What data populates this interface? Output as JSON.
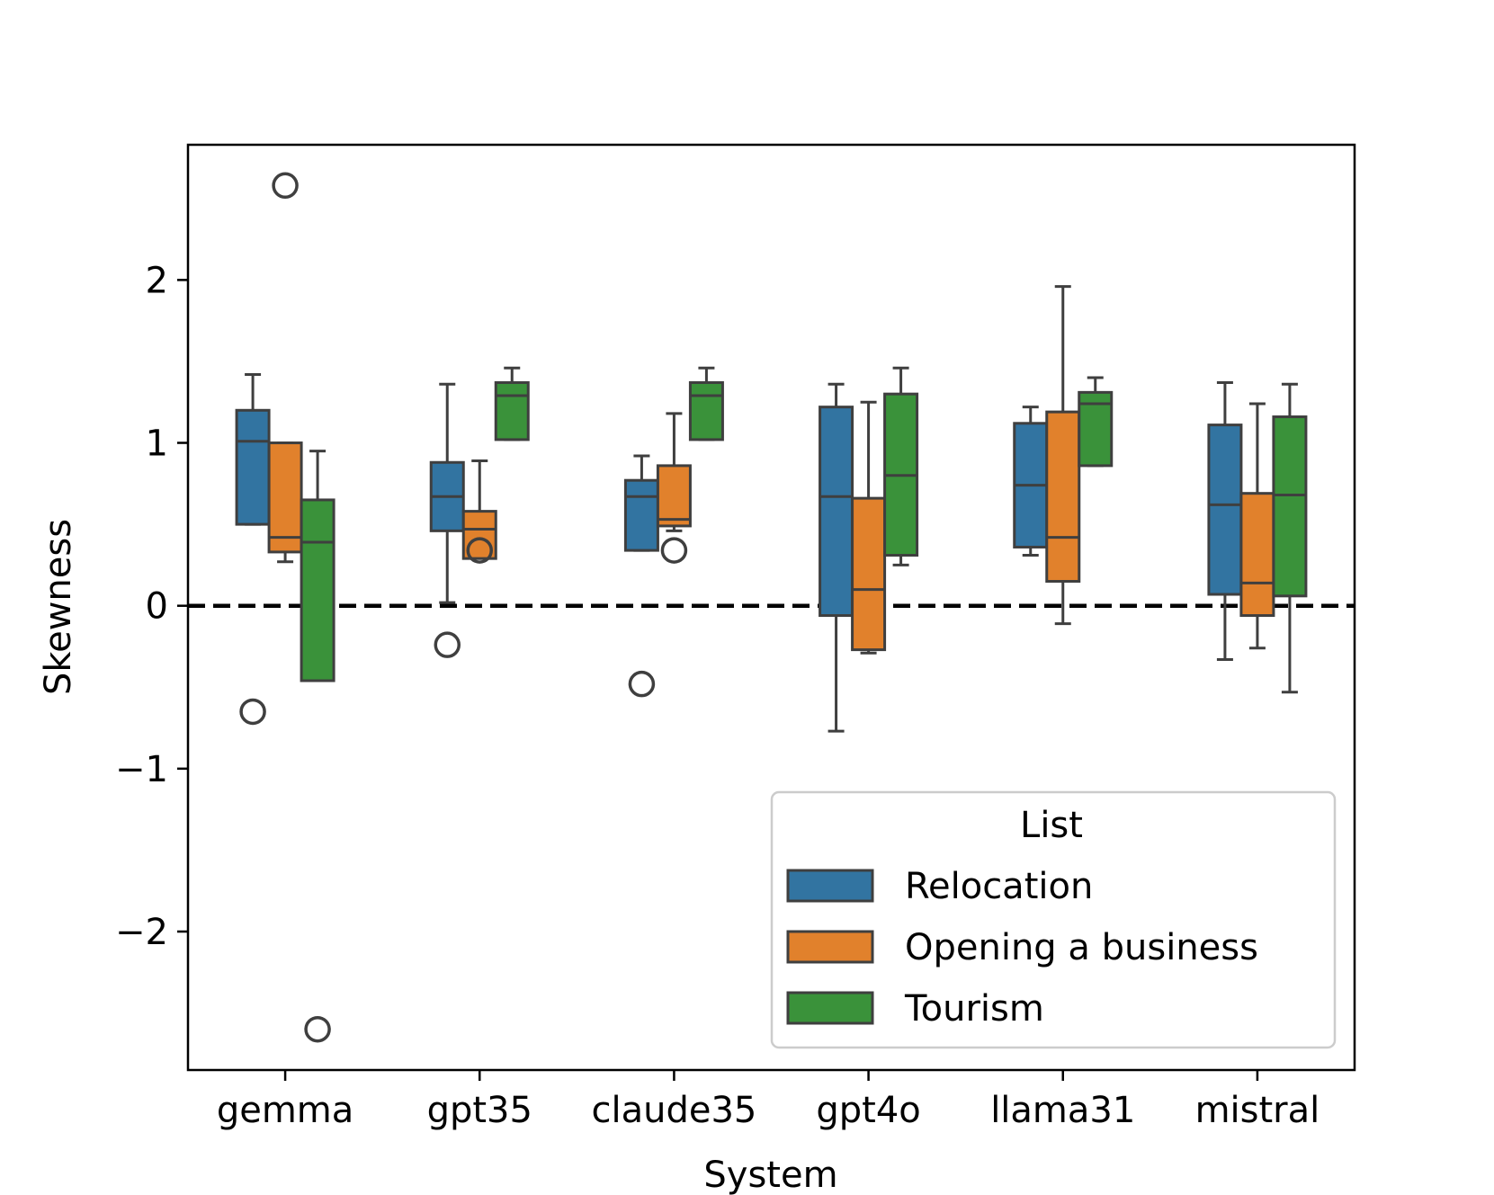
{
  "chart_data": {
    "type": "box",
    "xlabel": "System",
    "ylabel": "Skewness",
    "categories": [
      "gemma",
      "gpt35",
      "claude35",
      "gpt4o",
      "llama31",
      "mistral"
    ],
    "yticks": [
      -2,
      -1,
      0,
      1,
      2
    ],
    "ytick_labels": [
      "−2",
      "−1",
      "0",
      "1",
      "2"
    ],
    "ylim": [
      -2.85,
      2.83
    ],
    "reference_line": {
      "y": 0,
      "style": "dashed",
      "color": "#000000"
    },
    "legend": {
      "title": "List",
      "location": "lower-right"
    },
    "series": [
      {
        "name": "Relocation",
        "color": "#3274a1",
        "boxes": [
          {
            "whisker_low": 0.5,
            "q1": 0.5,
            "median": 1.01,
            "q3": 1.2,
            "whisker_high": 1.42,
            "outliers": [
              -0.65
            ]
          },
          {
            "whisker_low": 0.02,
            "q1": 0.46,
            "median": 0.67,
            "q3": 0.88,
            "whisker_high": 1.36,
            "outliers": [
              -0.24
            ]
          },
          {
            "whisker_low": 0.34,
            "q1": 0.34,
            "median": 0.67,
            "q3": 0.77,
            "whisker_high": 0.92,
            "outliers": [
              -0.48
            ]
          },
          {
            "whisker_low": -0.77,
            "q1": -0.06,
            "median": 0.67,
            "q3": 1.22,
            "whisker_high": 1.36,
            "outliers": []
          },
          {
            "whisker_low": 0.31,
            "q1": 0.36,
            "median": 0.74,
            "q3": 1.12,
            "whisker_high": 1.22,
            "outliers": []
          },
          {
            "whisker_low": -0.33,
            "q1": 0.07,
            "median": 0.62,
            "q3": 1.11,
            "whisker_high": 1.37,
            "outliers": []
          }
        ]
      },
      {
        "name": "Opening a business",
        "color": "#e1812c",
        "boxes": [
          {
            "whisker_low": 0.27,
            "q1": 0.33,
            "median": 0.42,
            "q3": 1.0,
            "whisker_high": 1.0,
            "outliers": [
              2.58
            ]
          },
          {
            "whisker_low": 0.29,
            "q1": 0.29,
            "median": 0.47,
            "q3": 0.58,
            "whisker_high": 0.89,
            "outliers": [
              0.34
            ]
          },
          {
            "whisker_low": 0.46,
            "q1": 0.49,
            "median": 0.53,
            "q3": 0.86,
            "whisker_high": 1.18,
            "outliers": [
              0.34
            ]
          },
          {
            "whisker_low": -0.29,
            "q1": -0.27,
            "median": 0.1,
            "q3": 0.66,
            "whisker_high": 1.25,
            "outliers": []
          },
          {
            "whisker_low": -0.11,
            "q1": 0.15,
            "median": 0.42,
            "q3": 1.19,
            "whisker_high": 1.96,
            "outliers": []
          },
          {
            "whisker_low": -0.26,
            "q1": -0.06,
            "median": 0.14,
            "q3": 0.69,
            "whisker_high": 1.24,
            "outliers": []
          }
        ]
      },
      {
        "name": "Tourism",
        "color": "#3a923a",
        "boxes": [
          {
            "whisker_low": -0.46,
            "q1": -0.46,
            "median": 0.39,
            "q3": 0.65,
            "whisker_high": 0.95,
            "outliers": [
              -2.6
            ]
          },
          {
            "whisker_low": 1.02,
            "q1": 1.02,
            "median": 1.29,
            "q3": 1.37,
            "whisker_high": 1.46,
            "outliers": []
          },
          {
            "whisker_low": 1.02,
            "q1": 1.02,
            "median": 1.29,
            "q3": 1.37,
            "whisker_high": 1.46,
            "outliers": []
          },
          {
            "whisker_low": 0.25,
            "q1": 0.31,
            "median": 0.8,
            "q3": 1.3,
            "whisker_high": 1.46,
            "outliers": []
          },
          {
            "whisker_low": 0.86,
            "q1": 0.86,
            "median": 1.24,
            "q3": 1.31,
            "whisker_high": 1.4,
            "outliers": []
          },
          {
            "whisker_low": -0.53,
            "q1": 0.06,
            "median": 0.68,
            "q3": 1.16,
            "whisker_high": 1.36,
            "outliers": []
          }
        ]
      }
    ]
  }
}
